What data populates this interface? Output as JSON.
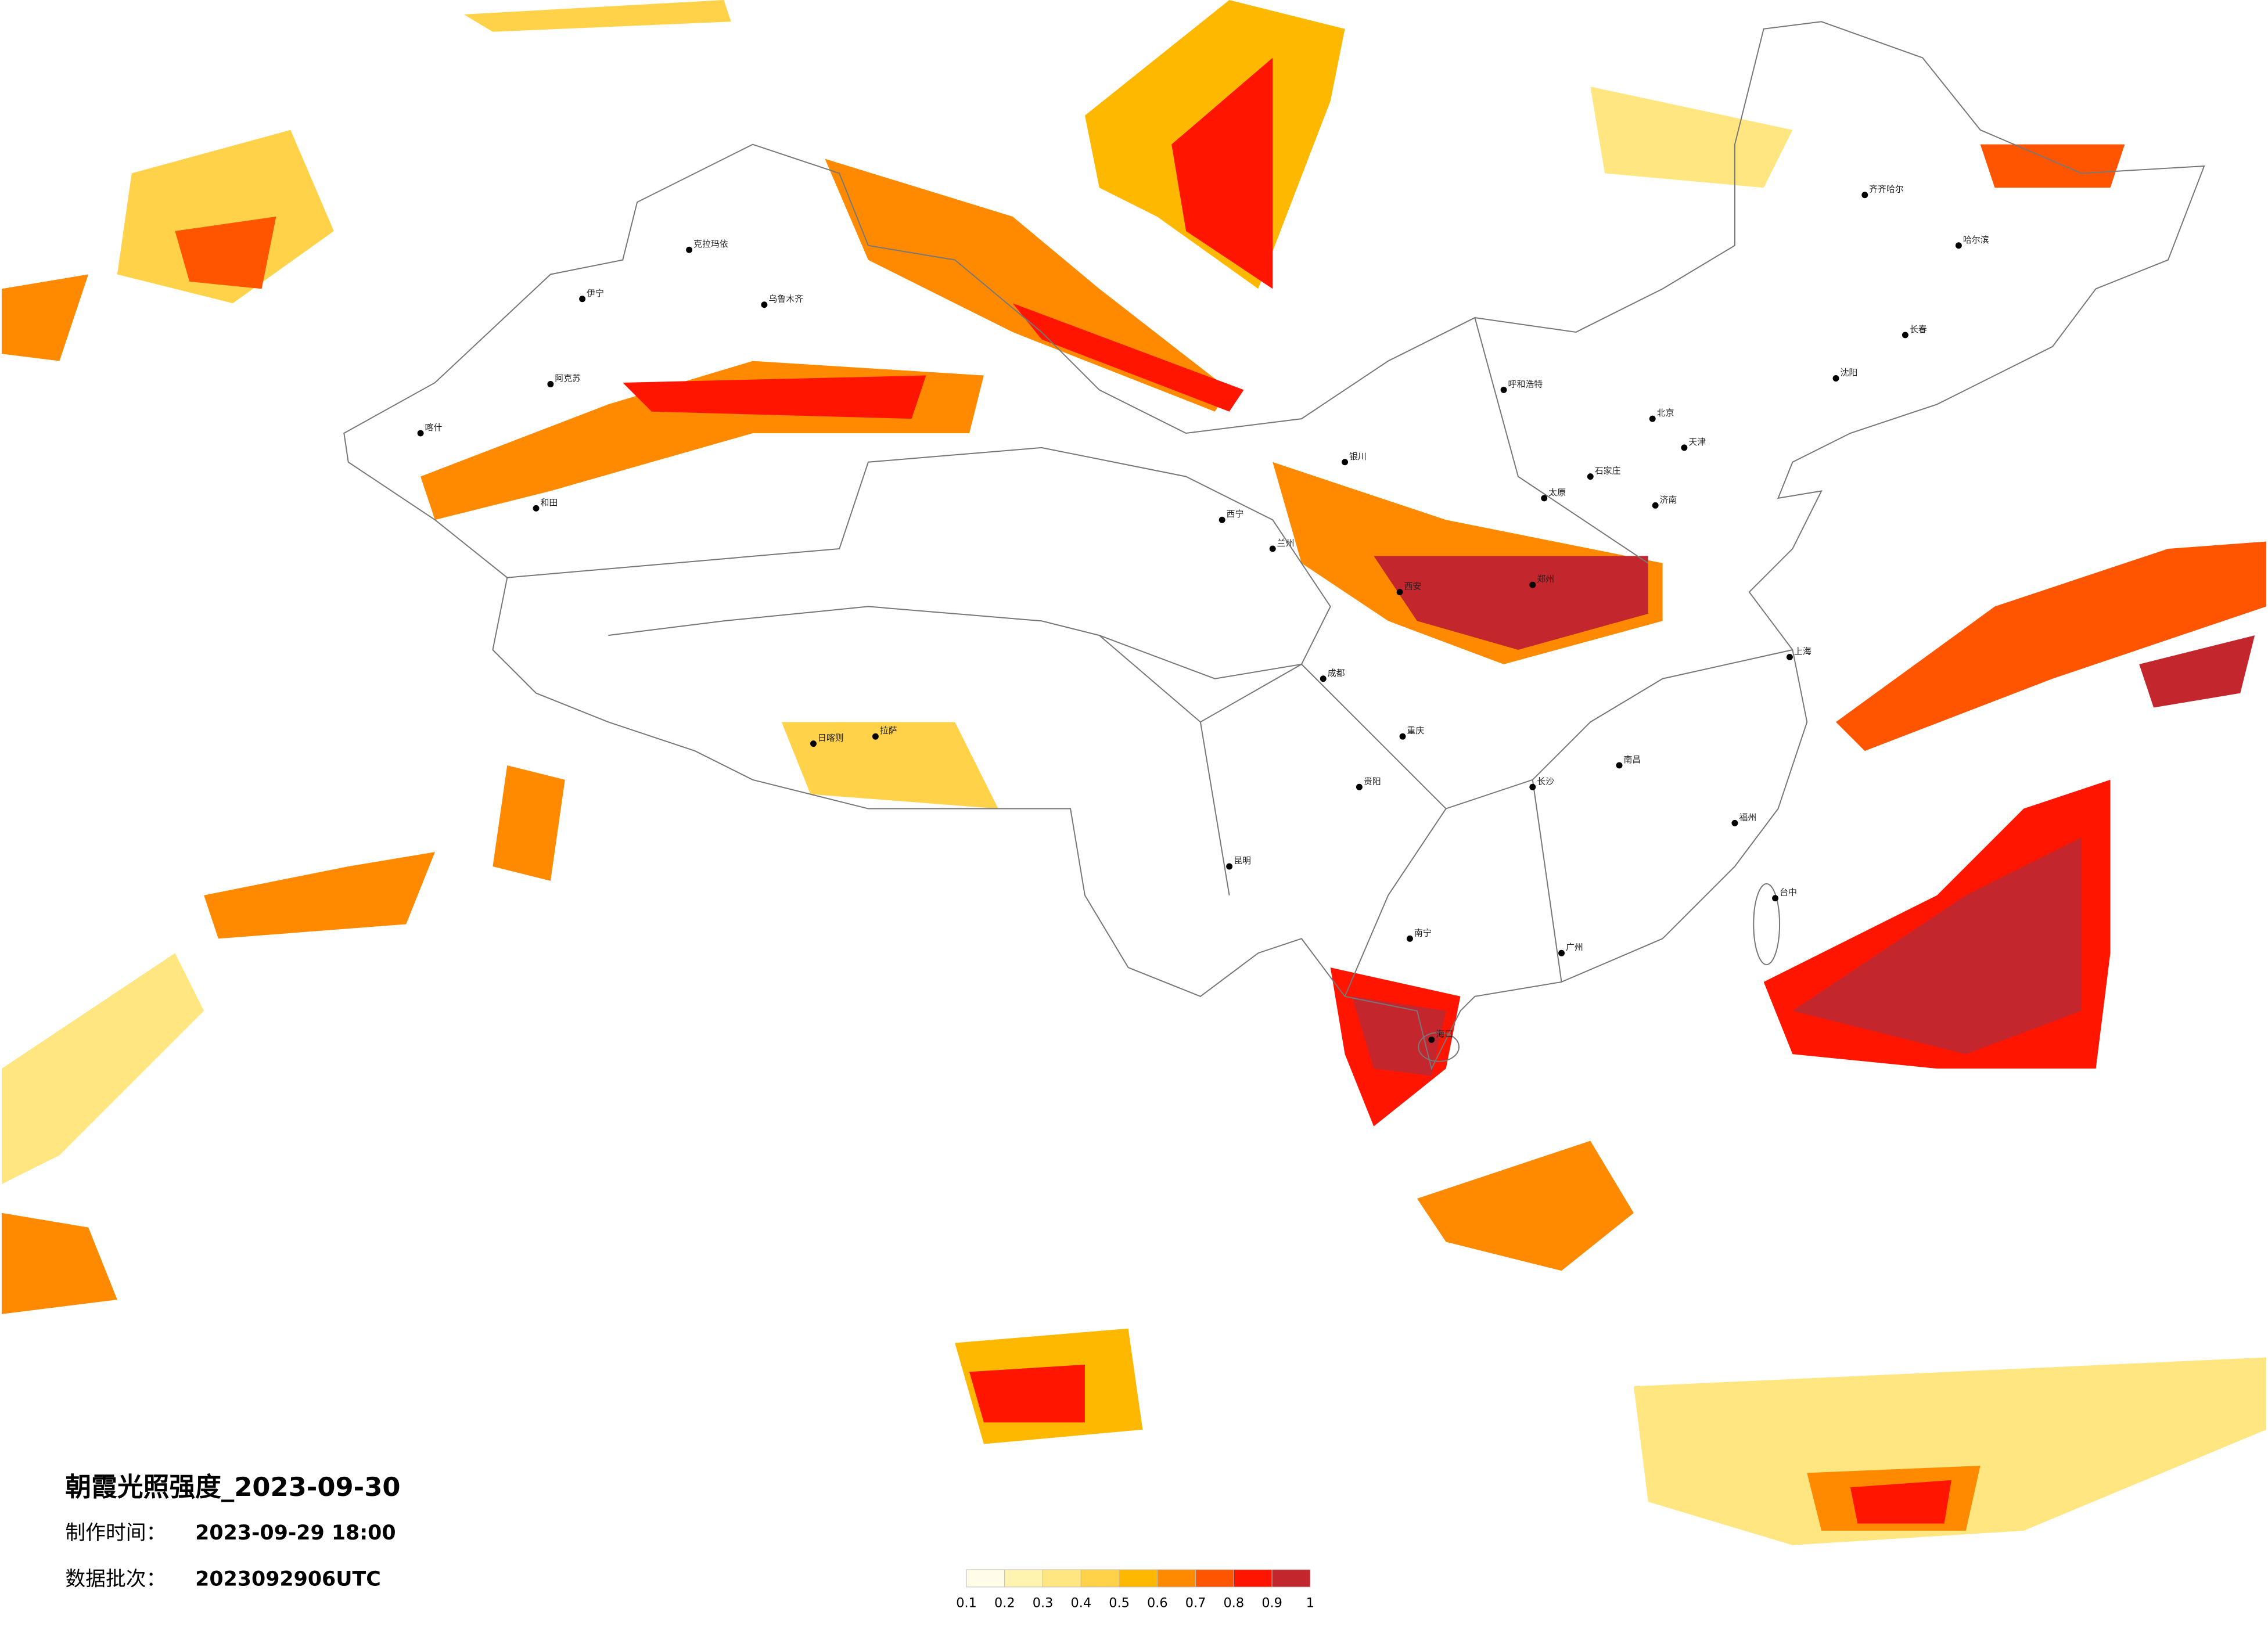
{
  "title": "朝霞光照强度_2023-09-30",
  "info": [
    {
      "label": "制作时间：",
      "value": "2023-09-29 18:00"
    },
    {
      "label": "数据批次：",
      "value": "2023092906UTC"
    }
  ],
  "legend": {
    "bounds": [
      0.1,
      0.2,
      0.3,
      0.4,
      0.5,
      0.6,
      0.7,
      0.8,
      0.9,
      1
    ],
    "colors": [
      "#fffce8",
      "#fff3b0",
      "#ffe680",
      "#ffd24a",
      "#ffb800",
      "#ff8a00",
      "#ff5500",
      "#ff1500",
      "#c4262e"
    ]
  },
  "cities": [
    {
      "name": "乌鲁木齐"
    },
    {
      "name": "克拉玛依"
    },
    {
      "name": "伊宁"
    },
    {
      "name": "阿克苏"
    },
    {
      "name": "喀什"
    },
    {
      "name": "和田"
    },
    {
      "name": "拉萨"
    },
    {
      "name": "日喀则"
    },
    {
      "name": "西宁"
    },
    {
      "name": "兰州"
    },
    {
      "name": "银川"
    },
    {
      "name": "呼和浩特"
    },
    {
      "name": "北京"
    },
    {
      "name": "天津"
    },
    {
      "name": "石家庄"
    },
    {
      "name": "太原"
    },
    {
      "name": "西安"
    },
    {
      "name": "郑州"
    },
    {
      "name": "济南"
    },
    {
      "name": "成都"
    },
    {
      "name": "重庆"
    },
    {
      "name": "贵阳"
    },
    {
      "name": "昆明"
    },
    {
      "name": "南宁"
    },
    {
      "name": "广州"
    },
    {
      "name": "长沙"
    },
    {
      "name": "南昌"
    },
    {
      "name": "福州"
    },
    {
      "name": "上海"
    },
    {
      "name": "沈阳"
    },
    {
      "name": "长春"
    },
    {
      "name": "哈尔滨"
    },
    {
      "name": "齐齐哈尔"
    },
    {
      "name": "海口"
    },
    {
      "name": "台中"
    }
  ]
}
